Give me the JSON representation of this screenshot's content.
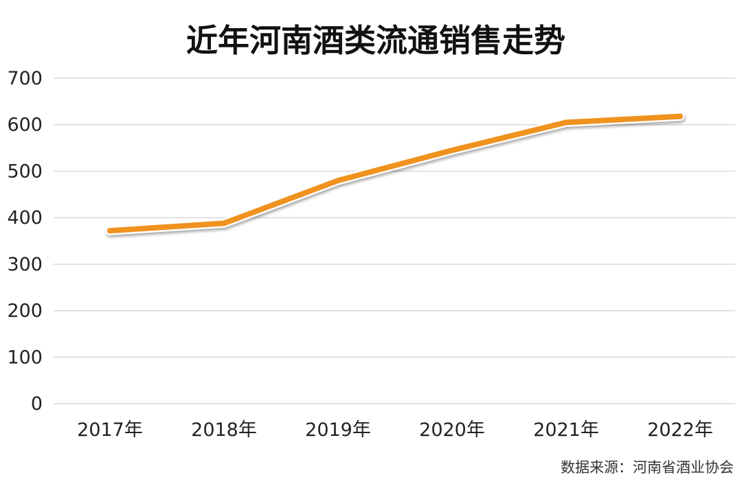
{
  "chart_data": {
    "type": "line",
    "title": "近年河南酒类流通销售走势",
    "xlabel": "",
    "ylabel": "",
    "categories": [
      "2017年",
      "2018年",
      "2019年",
      "2020年",
      "2021年",
      "2022年"
    ],
    "series": [
      {
        "values": [
          372,
          388,
          480,
          545,
          605,
          618
        ],
        "color": "#f0921e"
      }
    ],
    "ylim": [
      0,
      700
    ],
    "yticks": [
      "0",
      "100",
      "200",
      "300",
      "400",
      "500",
      "600",
      "700"
    ],
    "grid": true,
    "legend": "none"
  },
  "source_note": "数据来源：河南省酒业协会"
}
